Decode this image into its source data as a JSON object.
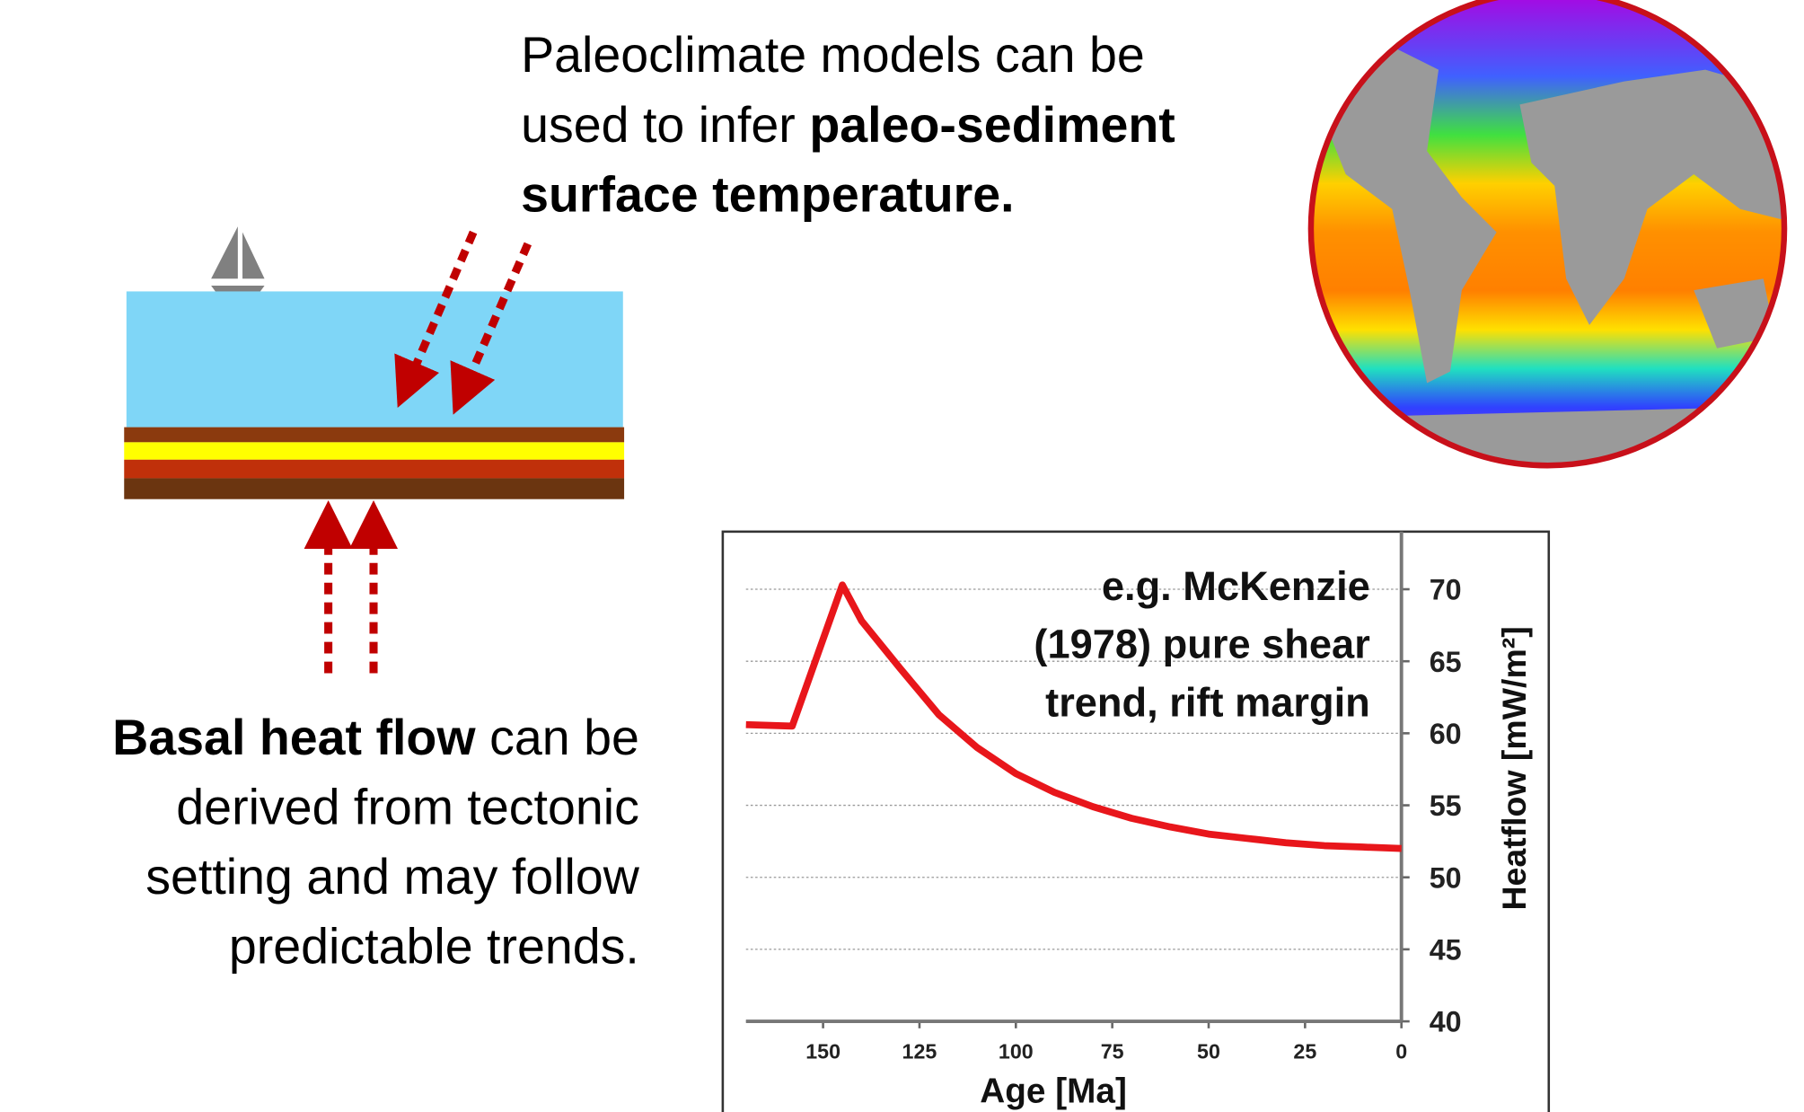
{
  "top_text": [
    [
      {
        "t": "Paleoclimate models can be"
      }
    ],
    [
      {
        "t": "used to infer"
      },
      {
        "t": "paleo-sediment",
        "b": true
      }
    ],
    [
      {
        "t": "surface temperature.",
        "b": true
      }
    ]
  ],
  "basal_text": [
    [
      {
        "t": "Basal heat flow",
        "b": true
      },
      {
        "t": "can be"
      }
    ],
    [
      {
        "t": "derived from tectonic"
      }
    ],
    [
      {
        "t": "setting and may follow"
      }
    ],
    [
      {
        "t": "predictable trends."
      }
    ]
  ],
  "chart_data": {
    "type": "line",
    "annotation": [
      "e.g. McKenzie",
      "(1978)  pure shear",
      "trend, rift margin"
    ],
    "x_label": "Age [Ma]",
    "y_label": "Heatflow [mW/m²]",
    "x": [
      170,
      158,
      145,
      140,
      130,
      120,
      110,
      100,
      90,
      80,
      70,
      60,
      50,
      40,
      30,
      20,
      10,
      0
    ],
    "series": [
      {
        "color": "#e8161b",
        "values": [
          60.6,
          60.5,
          70.3,
          67.8,
          64.5,
          61.3,
          59.0,
          57.2,
          55.9,
          54.9,
          54.1,
          53.5,
          53.0,
          52.7,
          52.4,
          52.2,
          52.1,
          52.0
        ]
      }
    ],
    "xlim": [
      170,
      0
    ],
    "ylim": [
      40,
      74
    ],
    "xticks": [
      150,
      125,
      100,
      75,
      50,
      25,
      0
    ],
    "yticks": [
      40,
      45,
      50,
      55,
      60,
      65,
      70
    ],
    "grid": true
  }
}
